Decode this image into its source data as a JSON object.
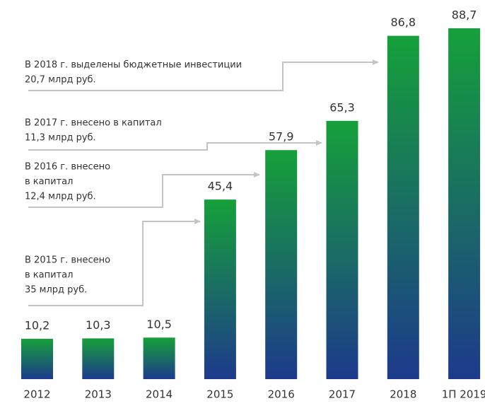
{
  "chart_data": {
    "type": "bar",
    "categories": [
      "2012",
      "2013",
      "2014",
      "2015",
      "2016",
      "2017",
      "2018",
      "1П 2019"
    ],
    "values": [
      10.2,
      10.3,
      10.5,
      45.4,
      57.9,
      65.3,
      86.8,
      88.7
    ],
    "value_labels": [
      "10,2",
      "10,3",
      "10,5",
      "45,4",
      "57,9",
      "65,3",
      "86,8",
      "88,7"
    ],
    "color": [
      "#16a03a",
      "#1d3a8c"
    ],
    "annotations": [
      {
        "lines": [
          "В 2018 г. выделены бюджетные инвестиции",
          "20,7 млрд руб."
        ]
      },
      {
        "lines": [
          "В 2017 г. внесено в капитал",
          "11,3 млрд руб."
        ]
      },
      {
        "lines": [
          "В 2016 г. внесено",
          "в капитал",
          "12,4 млрд руб."
        ]
      },
      {
        "lines": [
          "В 2015 г. внесено",
          "в капитал",
          "35 млрд руб."
        ]
      }
    ]
  }
}
